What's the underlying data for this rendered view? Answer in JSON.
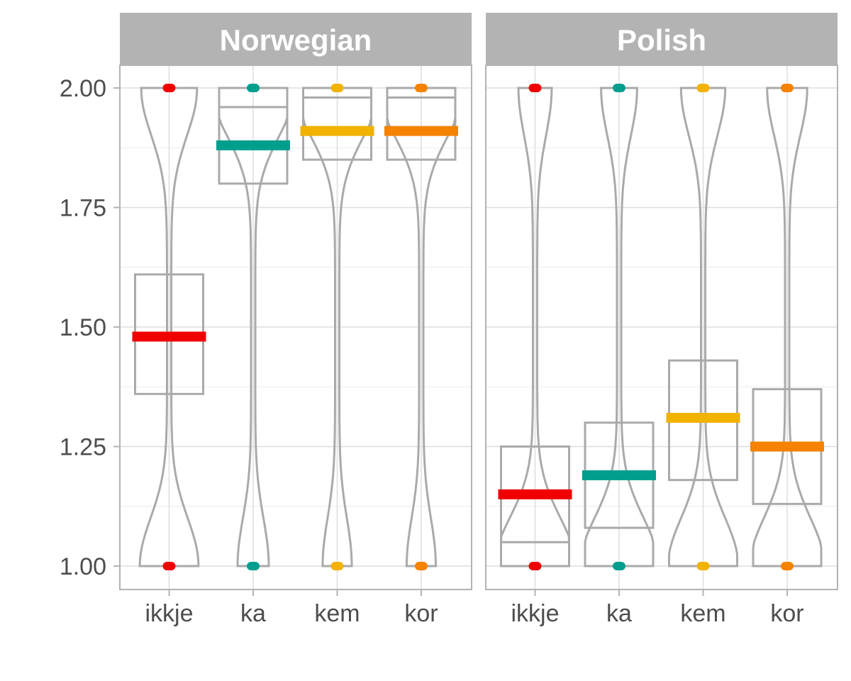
{
  "chart_data": {
    "type": "box-violin",
    "ylim": [
      1.0,
      2.0
    ],
    "y_ticks": [
      "1.00",
      "1.25",
      "1.50",
      "1.75",
      "2.00"
    ],
    "categories": [
      "ikkje",
      "ka",
      "kem",
      "kor"
    ],
    "grid": true,
    "colors": {
      "ikkje": "#f00000",
      "ka": "#009e8c",
      "kem": "#f2b200",
      "kor": "#f58200"
    },
    "panels": [
      {
        "title": "Norwegian",
        "groups": [
          {
            "category": "ikkje",
            "median": 1.48,
            "q1": 1.36,
            "q3": 1.61,
            "min": 1.0,
            "max": 2.0
          },
          {
            "category": "ka",
            "median": 1.88,
            "q1": 1.8,
            "q3": 1.96,
            "min": 1.0,
            "max": 2.0
          },
          {
            "category": "kem",
            "median": 1.91,
            "q1": 1.85,
            "q3": 1.98,
            "min": 1.0,
            "max": 2.0
          },
          {
            "category": "kor",
            "median": 1.91,
            "q1": 1.85,
            "q3": 1.98,
            "min": 1.0,
            "max": 2.0
          }
        ]
      },
      {
        "title": "Polish",
        "groups": [
          {
            "category": "ikkje",
            "median": 1.15,
            "q1": 1.05,
            "q3": 1.25,
            "min": 1.0,
            "max": 2.0
          },
          {
            "category": "ka",
            "median": 1.19,
            "q1": 1.08,
            "q3": 1.3,
            "min": 1.0,
            "max": 2.0
          },
          {
            "category": "kem",
            "median": 1.31,
            "q1": 1.18,
            "q3": 1.43,
            "min": 1.0,
            "max": 2.0
          },
          {
            "category": "kor",
            "median": 1.25,
            "q1": 1.13,
            "q3": 1.37,
            "min": 1.0,
            "max": 2.0
          }
        ]
      }
    ]
  }
}
